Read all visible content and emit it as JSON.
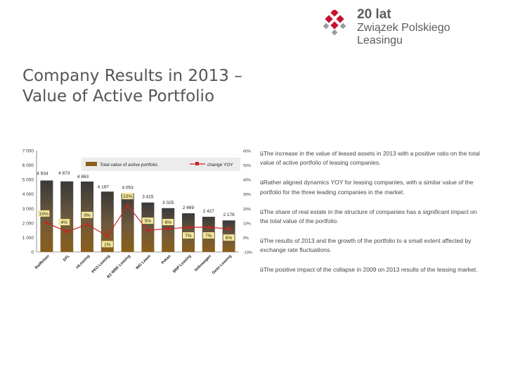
{
  "logo": {
    "line1": "20 lat",
    "line2": "Związek Polskiego",
    "line3": "Leasingu",
    "accent_color": "#c8102e"
  },
  "slide": {
    "title_line1": "Company Results in 2013 –",
    "title_line2": "Value of Active Portfolio"
  },
  "chart_data": {
    "type": "bar",
    "title": "",
    "categories": [
      "Raiffeisen",
      "EFL",
      "mLeasing",
      "PKO Leasing",
      "BZ WBK Leasing",
      "ING Lease",
      "Pekao",
      "BNP Leasing",
      "Volkswagen",
      "Getin Leasing"
    ],
    "series": [
      {
        "name": "Total value of active portfolio",
        "axis": "left",
        "color": "#8b5e1a",
        "values": [
          4934,
          4873,
          4863,
          4167,
          4053,
          3415,
          3025,
          2669,
          2427,
          2176
        ],
        "labels": [
          "4 934",
          "4 873",
          "4 863",
          "4 167",
          "4 053",
          "3 415",
          "3 025",
          "2 669",
          "2 427",
          "2 176"
        ]
      },
      {
        "name": "change YOY",
        "axis": "right",
        "color": "#cc2222",
        "values": [
          10,
          4,
          9,
          1,
          22,
          5,
          6,
          7,
          7,
          6
        ],
        "labels": [
          "10%",
          "4%",
          "9%",
          "1%",
          "22%",
          "5%",
          "6%",
          "7%",
          "7%",
          "6%"
        ]
      }
    ],
    "y_left": {
      "min": 0,
      "max": 7000,
      "ticks": [
        0,
        1000,
        2000,
        3000,
        4000,
        5000,
        6000,
        7000
      ],
      "tick_labels": [
        "0",
        "1 000",
        "2 000",
        "3 000",
        "4 000",
        "5 000",
        "6 000",
        "7 000"
      ]
    },
    "y_right": {
      "min": -10,
      "max": 60,
      "ticks": [
        -10,
        0,
        10,
        20,
        30,
        40,
        50,
        60
      ],
      "tick_labels": [
        "-10%",
        "0%",
        "10%",
        "20%",
        "30%",
        "40%",
        "50%",
        "60%"
      ]
    },
    "legend": "top-right",
    "grid": false
  },
  "bullets": [
    {
      "mark": "ü",
      "text": "The increase in the value of leased assets in 2013 with a positive ratio on the total value of active portfolio of leasing companies."
    },
    {
      "mark": "ü",
      "text": "Rather aligned dynamics YOY for leasing companies, with a similar value of the portfolio for the three leading companies in the market."
    },
    {
      "mark": "ü",
      "text": "The share of real estate in the structure of companies has a significant impact on the total value of the portfolio."
    },
    {
      "mark": "ü",
      "text": "The results of 2013 and the growth of the portfolio to a small extent affected by exchange rate fluctuations."
    },
    {
      "mark": "ü",
      "text": "The positive impact of the collapse in 2009 on 2013 results of the leasing market."
    }
  ]
}
